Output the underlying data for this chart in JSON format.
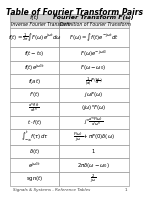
{
  "title": "Table of Fourier Transform Pairs",
  "col1_header": "f(t)",
  "col2_header": "Fourier Transform F(ω)",
  "col1_subheader": "Inverse Fourier Transform",
  "col2_subheader": "Definition of Fourier Transform",
  "rows": [
    {
      "col1": "$f(t) = \\frac{1}{2\\pi}\\int F(\\omega)e^{j\\omega t}d\\omega$",
      "col2": "$F(\\omega) = \\int f(t)e^{-j\\omega t}dt$"
    },
    {
      "col1": "$f(t - t_0)$",
      "col2": "$F(\\omega)e^{-j\\omega t_0}$"
    },
    {
      "col1": "$f(t)e^{j\\omega_0 t}$",
      "col2": "$F(\\omega - \\omega_0)$"
    },
    {
      "col1": "$f(at)$",
      "col2": "$\\frac{1}{|a|}F\\left(\\frac{\\omega}{a}\\right)$"
    },
    {
      "col1": "$f'(t)$",
      "col2": "$j\\omega F(\\omega)$"
    },
    {
      "col1": "$\\frac{d^n f(t)}{dt^n}$",
      "col2": "$(j\\omega)^n F(\\omega)$"
    },
    {
      "col1": "$t \\cdot f(t)$",
      "col2": "$j^n \\frac{d^n F(\\omega)}{d\\omega^n}$"
    },
    {
      "col1": "$\\int_{-\\infty}^{t} f(\\tau)d\\tau$",
      "col2": "$\\frac{F(\\omega)}{j\\omega} + \\pi F(0)\\delta(\\omega)$"
    },
    {
      "col1": "$\\delta(t)$",
      "col2": "$1$"
    },
    {
      "col1": "$e^{j\\omega_0 t}$",
      "col2": "$2\\pi\\delta(\\omega - \\omega_0)$"
    },
    {
      "col1": "$\\mathrm{sgn}(t)$",
      "col2": "$\\frac{2}{j\\omega}$"
    }
  ],
  "footer": "Signals & Systems - Reference Tables",
  "page_num": "1",
  "bg_color": "#ffffff",
  "border_color": "#aaaaaa",
  "title_fontsize": 5.5,
  "header_fontsize": 4.5,
  "cell_fontsize": 3.8,
  "footer_fontsize": 3.0
}
